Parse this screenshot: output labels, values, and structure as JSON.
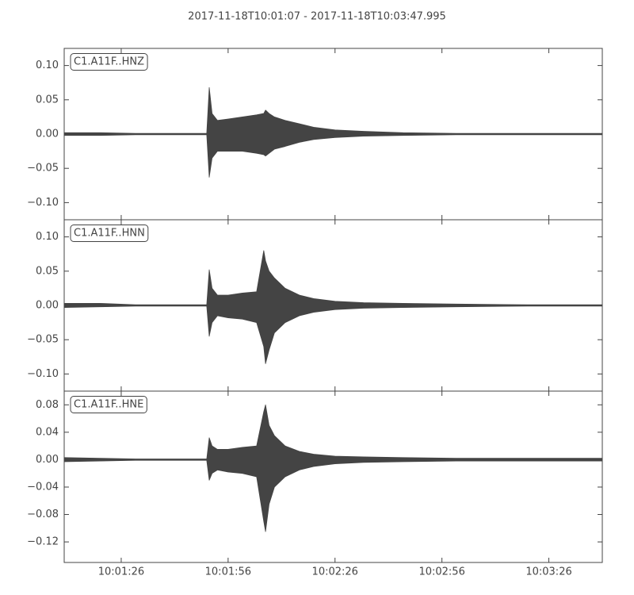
{
  "chart_data": {
    "type": "area",
    "title": "2017-11-18T10:01:07  -  2017-11-18T10:03:47.995",
    "x": [
      70,
      80,
      90,
      100,
      110,
      110.7,
      111.5,
      113,
      116,
      120,
      124,
      126,
      126.5,
      127.5,
      129,
      132,
      136,
      140,
      146,
      154,
      165,
      180,
      200,
      221
    ],
    "xlim": [
      70,
      221
    ],
    "xticks": [
      {
        "value": 86,
        "label": "10:01:26"
      },
      {
        "value": 116,
        "label": "10:01:56"
      },
      {
        "value": 146,
        "label": "10:02:26"
      },
      {
        "value": 176,
        "label": "10:02:56"
      },
      {
        "value": 206,
        "label": "10:03:26"
      }
    ],
    "panels": [
      {
        "label": "C1.A11F..HNZ",
        "color": "#444444",
        "ylim": [
          -0.125,
          0.125
        ],
        "yticks": [
          {
            "value": 0.1,
            "label": "0.10"
          },
          {
            "value": 0.05,
            "label": "0.05"
          },
          {
            "value": 0,
            "label": "0.00"
          },
          {
            "value": -0.05,
            "label": "−0.05"
          },
          {
            "value": -0.1,
            "label": "−0.10"
          }
        ],
        "upper": [
          0.002,
          0.002,
          0.001,
          0.001,
          0.001,
          0.068,
          0.03,
          0.02,
          0.022,
          0.025,
          0.028,
          0.03,
          0.035,
          0.03,
          0.025,
          0.02,
          0.015,
          0.01,
          0.006,
          0.004,
          0.002,
          0.001,
          0.001,
          0.001
        ],
        "lower": [
          -0.002,
          -0.002,
          -0.001,
          -0.001,
          -0.001,
          -0.063,
          -0.035,
          -0.025,
          -0.025,
          -0.025,
          -0.028,
          -0.03,
          -0.032,
          -0.028,
          -0.022,
          -0.018,
          -0.012,
          -0.008,
          -0.005,
          -0.003,
          -0.002,
          -0.001,
          -0.001,
          -0.001
        ]
      },
      {
        "label": "C1.A11F..HNN",
        "color": "#444444",
        "ylim": [
          -0.125,
          0.125
        ],
        "yticks": [
          {
            "value": 0.1,
            "label": "0.10"
          },
          {
            "value": 0.05,
            "label": "0.05"
          },
          {
            "value": 0,
            "label": "0.00"
          },
          {
            "value": -0.05,
            "label": "−0.05"
          },
          {
            "value": -0.1,
            "label": "−0.10"
          }
        ],
        "upper": [
          0.003,
          0.003,
          0.001,
          0.001,
          0.001,
          0.052,
          0.025,
          0.015,
          0.015,
          0.018,
          0.02,
          0.08,
          0.065,
          0.05,
          0.04,
          0.025,
          0.015,
          0.01,
          0.006,
          0.004,
          0.003,
          0.002,
          0.001,
          0.001
        ],
        "lower": [
          -0.003,
          -0.002,
          -0.001,
          -0.001,
          -0.001,
          -0.045,
          -0.025,
          -0.015,
          -0.018,
          -0.02,
          -0.025,
          -0.06,
          -0.085,
          -0.065,
          -0.04,
          -0.025,
          -0.015,
          -0.01,
          -0.006,
          -0.004,
          -0.003,
          -0.002,
          -0.001,
          -0.001
        ]
      },
      {
        "label": "C1.A11F..HNE",
        "color": "#444444",
        "ylim": [
          -0.15,
          0.1
        ],
        "yticks": [
          {
            "value": 0.08,
            "label": "0.08"
          },
          {
            "value": 0.04,
            "label": "0.04"
          },
          {
            "value": 0,
            "label": "0.00"
          },
          {
            "value": -0.04,
            "label": "−0.04"
          },
          {
            "value": -0.08,
            "label": "−0.08"
          },
          {
            "value": -0.12,
            "label": "−0.12"
          }
        ],
        "upper": [
          0.003,
          0.002,
          0.001,
          0.001,
          0.001,
          0.032,
          0.02,
          0.015,
          0.015,
          0.018,
          0.02,
          0.07,
          0.08,
          0.05,
          0.035,
          0.02,
          0.012,
          0.008,
          0.005,
          0.004,
          0.003,
          0.002,
          0.002,
          0.002
        ],
        "lower": [
          -0.003,
          -0.002,
          -0.001,
          -0.001,
          -0.001,
          -0.03,
          -0.02,
          -0.015,
          -0.018,
          -0.02,
          -0.025,
          -0.09,
          -0.105,
          -0.065,
          -0.04,
          -0.025,
          -0.015,
          -0.01,
          -0.006,
          -0.004,
          -0.003,
          -0.002,
          -0.002,
          -0.002
        ]
      }
    ]
  }
}
